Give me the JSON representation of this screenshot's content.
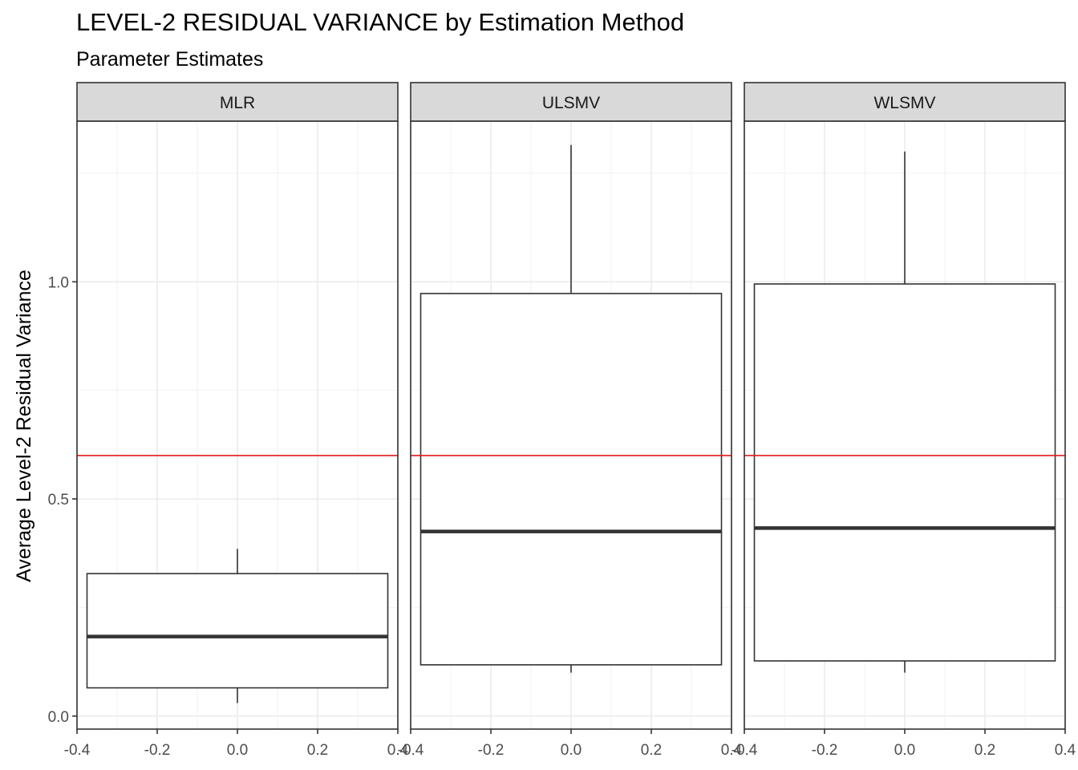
{
  "chart_data": {
    "type": "boxplot",
    "title": "LEVEL-2 RESIDUAL VARIANCE by Estimation Method",
    "subtitle": "Parameter Estimates",
    "ylabel": "Average Level-2 Residual Variance",
    "xlabel": "",
    "xlim": [
      -0.4,
      0.4
    ],
    "ylim": [
      -0.03,
      1.37
    ],
    "x_ticks": [
      -0.4,
      -0.2,
      0.0,
      0.2,
      0.4
    ],
    "x_tick_labels": [
      "-0.4",
      "-0.2",
      "0.0",
      "0.2",
      "0.4"
    ],
    "y_ticks": [
      0.0,
      0.5,
      1.0
    ],
    "y_tick_labels": [
      "0.0",
      "0.5",
      "1.0"
    ],
    "grid": true,
    "reference_line": {
      "y": 0.6,
      "color": "#e41a1c"
    },
    "box_color": "#333333",
    "facet_strip_color": "#d9d9d9",
    "panels": [
      {
        "label": "MLR",
        "box_x_range": [
          -0.375,
          0.375
        ],
        "whisker_low": 0.03,
        "q1": 0.065,
        "median": 0.183,
        "q3": 0.328,
        "whisker_high": 0.385
      },
      {
        "label": "ULSMV",
        "box_x_range": [
          -0.375,
          0.375
        ],
        "whisker_low": 0.1,
        "q1": 0.118,
        "median": 0.425,
        "q3": 0.973,
        "whisker_high": 1.315
      },
      {
        "label": "WLSMV",
        "box_x_range": [
          -0.375,
          0.375
        ],
        "whisker_low": 0.1,
        "q1": 0.127,
        "median": 0.433,
        "q3": 0.995,
        "whisker_high": 1.3
      }
    ]
  }
}
